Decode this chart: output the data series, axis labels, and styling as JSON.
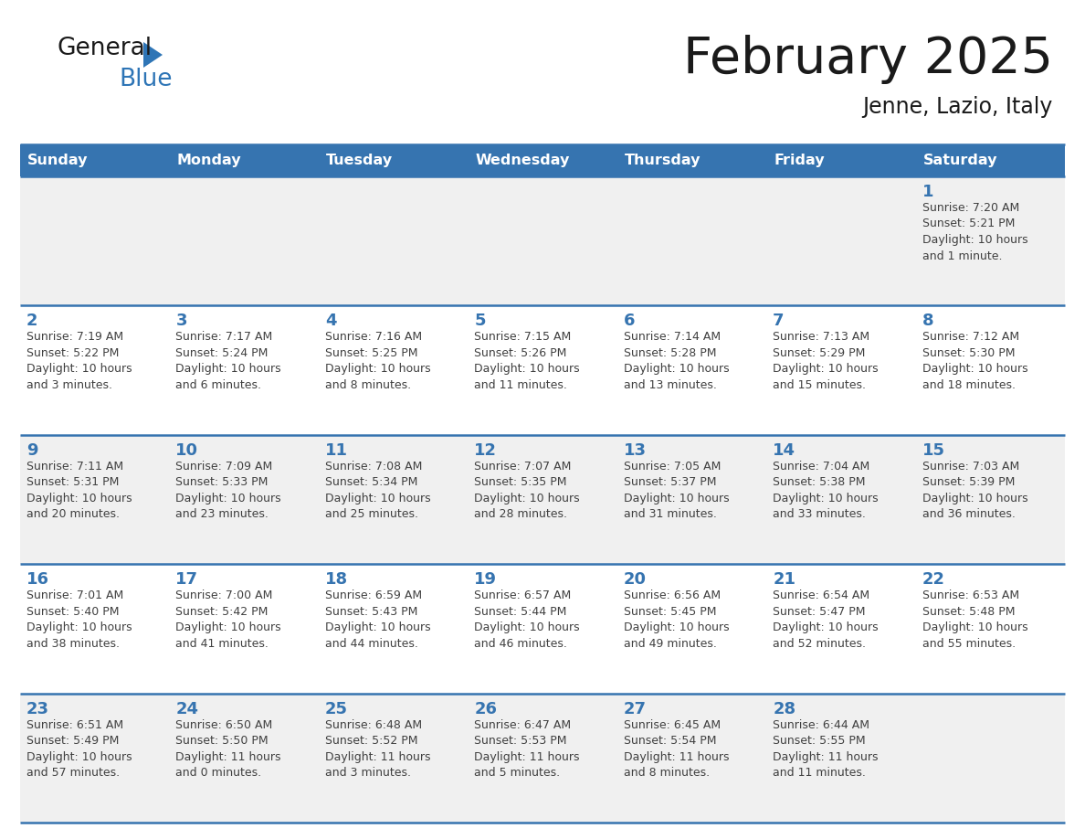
{
  "title": "February 2025",
  "subtitle": "Jenne, Lazio, Italy",
  "header_bg_color": "#3674B0",
  "header_text_color": "#FFFFFF",
  "day_names": [
    "Sunday",
    "Monday",
    "Tuesday",
    "Wednesday",
    "Thursday",
    "Friday",
    "Saturday"
  ],
  "odd_row_bg": "#F0F0F0",
  "even_row_bg": "#FFFFFF",
  "border_color": "#3674B0",
  "number_color": "#3674B0",
  "text_color": "#404040",
  "logo_black": "#1a1a1a",
  "logo_blue": "#2E75B6",
  "title_color": "#1a1a1a",
  "calendar": [
    [
      {
        "day": null,
        "info": ""
      },
      {
        "day": null,
        "info": ""
      },
      {
        "day": null,
        "info": ""
      },
      {
        "day": null,
        "info": ""
      },
      {
        "day": null,
        "info": ""
      },
      {
        "day": null,
        "info": ""
      },
      {
        "day": 1,
        "info": "Sunrise: 7:20 AM\nSunset: 5:21 PM\nDaylight: 10 hours\nand 1 minute."
      }
    ],
    [
      {
        "day": 2,
        "info": "Sunrise: 7:19 AM\nSunset: 5:22 PM\nDaylight: 10 hours\nand 3 minutes."
      },
      {
        "day": 3,
        "info": "Sunrise: 7:17 AM\nSunset: 5:24 PM\nDaylight: 10 hours\nand 6 minutes."
      },
      {
        "day": 4,
        "info": "Sunrise: 7:16 AM\nSunset: 5:25 PM\nDaylight: 10 hours\nand 8 minutes."
      },
      {
        "day": 5,
        "info": "Sunrise: 7:15 AM\nSunset: 5:26 PM\nDaylight: 10 hours\nand 11 minutes."
      },
      {
        "day": 6,
        "info": "Sunrise: 7:14 AM\nSunset: 5:28 PM\nDaylight: 10 hours\nand 13 minutes."
      },
      {
        "day": 7,
        "info": "Sunrise: 7:13 AM\nSunset: 5:29 PM\nDaylight: 10 hours\nand 15 minutes."
      },
      {
        "day": 8,
        "info": "Sunrise: 7:12 AM\nSunset: 5:30 PM\nDaylight: 10 hours\nand 18 minutes."
      }
    ],
    [
      {
        "day": 9,
        "info": "Sunrise: 7:11 AM\nSunset: 5:31 PM\nDaylight: 10 hours\nand 20 minutes."
      },
      {
        "day": 10,
        "info": "Sunrise: 7:09 AM\nSunset: 5:33 PM\nDaylight: 10 hours\nand 23 minutes."
      },
      {
        "day": 11,
        "info": "Sunrise: 7:08 AM\nSunset: 5:34 PM\nDaylight: 10 hours\nand 25 minutes."
      },
      {
        "day": 12,
        "info": "Sunrise: 7:07 AM\nSunset: 5:35 PM\nDaylight: 10 hours\nand 28 minutes."
      },
      {
        "day": 13,
        "info": "Sunrise: 7:05 AM\nSunset: 5:37 PM\nDaylight: 10 hours\nand 31 minutes."
      },
      {
        "day": 14,
        "info": "Sunrise: 7:04 AM\nSunset: 5:38 PM\nDaylight: 10 hours\nand 33 minutes."
      },
      {
        "day": 15,
        "info": "Sunrise: 7:03 AM\nSunset: 5:39 PM\nDaylight: 10 hours\nand 36 minutes."
      }
    ],
    [
      {
        "day": 16,
        "info": "Sunrise: 7:01 AM\nSunset: 5:40 PM\nDaylight: 10 hours\nand 38 minutes."
      },
      {
        "day": 17,
        "info": "Sunrise: 7:00 AM\nSunset: 5:42 PM\nDaylight: 10 hours\nand 41 minutes."
      },
      {
        "day": 18,
        "info": "Sunrise: 6:59 AM\nSunset: 5:43 PM\nDaylight: 10 hours\nand 44 minutes."
      },
      {
        "day": 19,
        "info": "Sunrise: 6:57 AM\nSunset: 5:44 PM\nDaylight: 10 hours\nand 46 minutes."
      },
      {
        "day": 20,
        "info": "Sunrise: 6:56 AM\nSunset: 5:45 PM\nDaylight: 10 hours\nand 49 minutes."
      },
      {
        "day": 21,
        "info": "Sunrise: 6:54 AM\nSunset: 5:47 PM\nDaylight: 10 hours\nand 52 minutes."
      },
      {
        "day": 22,
        "info": "Sunrise: 6:53 AM\nSunset: 5:48 PM\nDaylight: 10 hours\nand 55 minutes."
      }
    ],
    [
      {
        "day": 23,
        "info": "Sunrise: 6:51 AM\nSunset: 5:49 PM\nDaylight: 10 hours\nand 57 minutes."
      },
      {
        "day": 24,
        "info": "Sunrise: 6:50 AM\nSunset: 5:50 PM\nDaylight: 11 hours\nand 0 minutes."
      },
      {
        "day": 25,
        "info": "Sunrise: 6:48 AM\nSunset: 5:52 PM\nDaylight: 11 hours\nand 3 minutes."
      },
      {
        "day": 26,
        "info": "Sunrise: 6:47 AM\nSunset: 5:53 PM\nDaylight: 11 hours\nand 5 minutes."
      },
      {
        "day": 27,
        "info": "Sunrise: 6:45 AM\nSunset: 5:54 PM\nDaylight: 11 hours\nand 8 minutes."
      },
      {
        "day": 28,
        "info": "Sunrise: 6:44 AM\nSunset: 5:55 PM\nDaylight: 11 hours\nand 11 minutes."
      },
      {
        "day": null,
        "info": ""
      }
    ]
  ]
}
